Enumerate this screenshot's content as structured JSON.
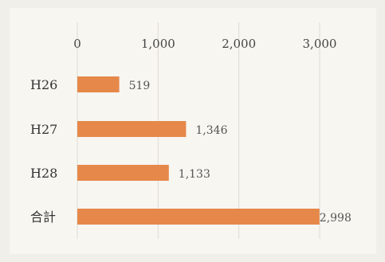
{
  "chart_data": {
    "type": "bar",
    "orientation": "horizontal",
    "categories": [
      "H26",
      "H27",
      "H28",
      "合計"
    ],
    "values": [
      519,
      1346,
      1133,
      2998
    ],
    "value_labels": [
      "519",
      "1,346",
      "1,133",
      "2,998"
    ],
    "xlim": [
      0,
      3000
    ],
    "ticks": [
      0,
      1000,
      2000,
      3000
    ],
    "tick_labels": [
      "0",
      "1,000",
      "2,000",
      "3,000"
    ],
    "axis_position": "top",
    "grid": true,
    "bar_color": "#e5884a",
    "title": "",
    "xlabel": "",
    "ylabel": ""
  }
}
